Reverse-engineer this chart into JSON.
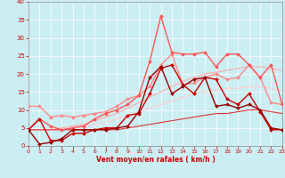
{
  "xlabel": "Vent moyen/en rafales ( km/h )",
  "xlim": [
    0,
    23
  ],
  "ylim": [
    0,
    40
  ],
  "yticks": [
    0,
    5,
    10,
    15,
    20,
    25,
    30,
    35,
    40
  ],
  "xticks": [
    0,
    1,
    2,
    3,
    4,
    5,
    6,
    7,
    8,
    9,
    10,
    11,
    12,
    13,
    14,
    15,
    16,
    17,
    18,
    19,
    20,
    21,
    22,
    23
  ],
  "bg_color": "#cbeef3",
  "grid_color": "#ffffff",
  "lines": [
    {
      "x": [
        0,
        1,
        2,
        3,
        4,
        5,
        6,
        7,
        8,
        9,
        10,
        11,
        12,
        13,
        14,
        15,
        16,
        17,
        18,
        19,
        20,
        21,
        22,
        23
      ],
      "y": [
        4.5,
        7.5,
        1.5,
        1.5,
        3.5,
        3.5,
        4.5,
        5.0,
        5.0,
        8.5,
        9.0,
        14.5,
        21.5,
        22.5,
        17.0,
        14.5,
        19.0,
        18.5,
        13.0,
        11.5,
        14.5,
        9.5,
        4.5,
        4.5
      ],
      "color": "#cc0000",
      "marker": "D",
      "markersize": 2.0,
      "linewidth": 1.0,
      "alpha": 1.0,
      "zorder": 5
    },
    {
      "x": [
        0,
        1,
        2,
        3,
        4,
        5,
        6,
        7,
        8,
        9,
        10,
        11,
        12,
        13,
        14,
        15,
        16,
        17,
        18,
        19,
        20,
        21,
        22,
        23
      ],
      "y": [
        4.5,
        0.5,
        1.0,
        2.0,
        4.5,
        4.5,
        4.5,
        4.5,
        5.0,
        5.5,
        9.5,
        19.0,
        22.0,
        14.5,
        16.5,
        18.5,
        19.0,
        11.0,
        11.5,
        10.5,
        11.5,
        10.0,
        5.0,
        4.5
      ],
      "color": "#990000",
      "marker": "D",
      "markersize": 2.0,
      "linewidth": 1.0,
      "alpha": 1.0,
      "zorder": 5
    },
    {
      "x": [
        0,
        1,
        2,
        3,
        4,
        5,
        6,
        7,
        8,
        9,
        10,
        11,
        12,
        13,
        14,
        15,
        16,
        17,
        18,
        19,
        20,
        21,
        22,
        23
      ],
      "y": [
        11.0,
        11.0,
        8.0,
        8.5,
        8.0,
        8.5,
        9.0,
        9.5,
        11.0,
        13.0,
        14.0,
        16.5,
        22.5,
        25.5,
        17.0,
        17.5,
        19.0,
        20.0,
        18.5,
        19.0,
        22.5,
        19.0,
        12.0,
        11.5
      ],
      "color": "#ff8888",
      "marker": "D",
      "markersize": 2.0,
      "linewidth": 1.0,
      "alpha": 1.0,
      "zorder": 4
    },
    {
      "x": [
        0,
        1,
        2,
        3,
        4,
        5,
        6,
        7,
        8,
        9,
        10,
        11,
        12,
        13,
        14,
        15,
        16,
        17,
        18,
        19,
        20,
        21,
        22,
        23
      ],
      "y": [
        4.5,
        7.5,
        5.5,
        4.5,
        5.0,
        5.5,
        7.5,
        9.0,
        10.0,
        11.5,
        14.0,
        23.5,
        36.0,
        26.0,
        25.5,
        25.5,
        26.0,
        22.0,
        25.5,
        25.5,
        22.5,
        19.0,
        22.5,
        11.5
      ],
      "color": "#ff5555",
      "marker": "D",
      "markersize": 2.0,
      "linewidth": 1.0,
      "alpha": 1.0,
      "zorder": 4
    },
    {
      "x": [
        0,
        1,
        2,
        3,
        4,
        5,
        6,
        7,
        8,
        9,
        10,
        11,
        12,
        13,
        14,
        15,
        16,
        17,
        18,
        19,
        20,
        21,
        22,
        23
      ],
      "y": [
        4.5,
        4.5,
        4.5,
        5.0,
        5.5,
        6.0,
        7.0,
        8.0,
        9.0,
        10.5,
        12.0,
        13.5,
        15.0,
        16.5,
        18.0,
        19.0,
        20.0,
        20.5,
        21.0,
        21.5,
        22.0,
        22.0,
        21.5,
        21.0
      ],
      "color": "#ffaaaa",
      "marker": null,
      "markersize": 0,
      "linewidth": 0.8,
      "alpha": 1.0,
      "zorder": 3
    },
    {
      "x": [
        0,
        1,
        2,
        3,
        4,
        5,
        6,
        7,
        8,
        9,
        10,
        11,
        12,
        13,
        14,
        15,
        16,
        17,
        18,
        19,
        20,
        21,
        22,
        23
      ],
      "y": [
        4.5,
        4.5,
        4.5,
        4.5,
        5.0,
        5.5,
        6.0,
        6.5,
        7.5,
        8.5,
        9.5,
        10.5,
        11.5,
        12.5,
        13.5,
        14.5,
        15.0,
        15.5,
        16.0,
        16.0,
        16.5,
        16.5,
        16.0,
        15.5
      ],
      "color": "#ffcccc",
      "marker": null,
      "markersize": 0,
      "linewidth": 0.8,
      "alpha": 1.0,
      "zorder": 3
    },
    {
      "x": [
        0,
        1,
        2,
        3,
        4,
        5,
        6,
        7,
        8,
        9,
        10,
        11,
        12,
        13,
        14,
        15,
        16,
        17,
        18,
        19,
        20,
        21,
        22,
        23
      ],
      "y": [
        4.5,
        4.5,
        4.5,
        4.5,
        4.5,
        4.5,
        4.5,
        4.5,
        4.5,
        5.0,
        5.5,
        6.0,
        6.5,
        7.0,
        7.5,
        8.0,
        8.5,
        9.0,
        9.0,
        9.5,
        10.0,
        10.0,
        9.5,
        9.0
      ],
      "color": "#dd3333",
      "marker": null,
      "markersize": 0,
      "linewidth": 0.8,
      "alpha": 1.0,
      "zorder": 3
    }
  ]
}
